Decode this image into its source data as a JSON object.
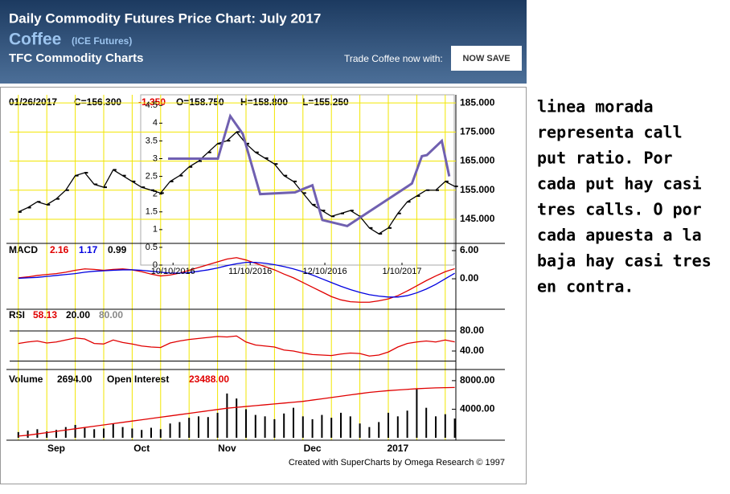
{
  "header": {
    "title": "Daily Commodity Futures Price Chart: July 2017",
    "commodity": "Coffee",
    "exchange": "(ICE Futures)",
    "brand": "TFC Commodity Charts",
    "trade_text": "Trade Coffee now with:",
    "button": "NOW SAVE"
  },
  "chart_data": [
    {
      "type": "line",
      "date": "01/26/2017",
      "close": "C=156.300",
      "change": "-1.350",
      "open": "O=158.750",
      "high": "H=158.800",
      "low": "L=155.250",
      "color": "#000000",
      "categories": [
        null,
        null,
        null,
        null,
        "Sep",
        null,
        null,
        null,
        null,
        null,
        null,
        null,
        null,
        "Oct",
        null,
        null,
        null,
        null,
        null,
        null,
        null,
        null,
        "Nov",
        null,
        null,
        null,
        null,
        null,
        null,
        null,
        null,
        "Dec",
        null,
        null,
        null,
        null,
        null,
        null,
        null,
        null,
        "2017",
        null,
        null,
        null,
        null,
        null,
        null
      ],
      "values": [
        147.5,
        149,
        151,
        150,
        152,
        155,
        160,
        161,
        157,
        156,
        162,
        160,
        158,
        156,
        155,
        154,
        158,
        160,
        163,
        165,
        168,
        171,
        172,
        175,
        171,
        168,
        166,
        164,
        160,
        158,
        154,
        150,
        148,
        146,
        147,
        148,
        146,
        142,
        140,
        142,
        147,
        151,
        153,
        155,
        155,
        158,
        156.3
      ],
      "ylim": [
        136.7,
        187.8
      ],
      "yticks": [
        {
          "value": 185,
          "label": "185.000"
        },
        {
          "value": 175,
          "label": "175.000"
        },
        {
          "value": 165,
          "label": "165.000"
        },
        {
          "value": 155,
          "label": "155.000"
        },
        {
          "value": 145,
          "label": "145.000"
        }
      ],
      "grid": true
    },
    {
      "type": "line",
      "title": "MACD",
      "readings": [
        "2.16",
        "1.17",
        "0.99"
      ],
      "reading_colors": [
        "#e00000",
        "#0000e0",
        "#000000"
      ],
      "series": [
        {
          "color": "#e00000",
          "values": [
            0.2,
            0.4,
            0.7,
            0.9,
            1.1,
            1.4,
            1.8,
            2.1,
            2.0,
            1.8,
            2.0,
            2.1,
            1.9,
            1.5,
            1.0,
            0.6,
            0.8,
            1.2,
            1.8,
            2.4,
            3.0,
            3.6,
            4.2,
            4.5,
            4.0,
            3.3,
            2.6,
            1.9,
            1.0,
            0.2,
            -0.8,
            -1.8,
            -2.8,
            -3.8,
            -4.5,
            -4.9,
            -5.0,
            -5.0,
            -4.7,
            -4.3,
            -3.6,
            -2.6,
            -1.5,
            -0.4,
            0.6,
            1.5,
            2.16
          ]
        },
        {
          "color": "#0000e0",
          "values": [
            0.1,
            0.2,
            0.3,
            0.5,
            0.7,
            0.9,
            1.1,
            1.4,
            1.6,
            1.7,
            1.8,
            1.9,
            1.9,
            1.8,
            1.6,
            1.4,
            1.2,
            1.2,
            1.3,
            1.6,
            1.9,
            2.3,
            2.8,
            3.2,
            3.5,
            3.5,
            3.3,
            3.0,
            2.6,
            2.1,
            1.5,
            0.8,
            0.0,
            -0.8,
            -1.6,
            -2.3,
            -2.9,
            -3.4,
            -3.7,
            -3.9,
            -3.9,
            -3.6,
            -3.0,
            -2.2,
            -1.2,
            0.0,
            1.17
          ]
        }
      ],
      "ylim": [
        -6.5,
        7.2
      ],
      "yticks": [
        {
          "value": 6,
          "label": "6.00"
        },
        {
          "value": 0,
          "label": "0.00"
        }
      ]
    },
    {
      "type": "line",
      "title": "RSI",
      "readings": [
        "58.13",
        "20.00",
        "80.00"
      ],
      "reading_colors": [
        "#e00000",
        "#000000",
        "#888888"
      ],
      "color": "#e00000",
      "values": [
        55,
        58,
        60,
        56,
        58,
        62,
        66,
        64,
        55,
        54,
        62,
        57,
        54,
        50,
        48,
        47,
        56,
        60,
        63,
        65,
        67,
        69,
        68,
        70,
        58,
        52,
        50,
        48,
        42,
        40,
        36,
        33,
        32,
        31,
        34,
        36,
        35,
        30,
        32,
        38,
        48,
        55,
        58,
        60,
        58,
        62,
        58.13
      ],
      "levels": [
        80,
        20
      ],
      "ylim": [
        3.2,
        120
      ],
      "yticks": [
        {
          "value": 80,
          "label": "80.00"
        },
        {
          "value": 40,
          "label": "40.00"
        }
      ]
    },
    {
      "type": "bar",
      "title": "Volume",
      "volume_reading": "2694.00",
      "oi_title": "Open Interest",
      "oi_reading": "23488.00",
      "series": [
        {
          "color": "#000000",
          "values": [
            800,
            1000,
            1200,
            900,
            1100,
            1500,
            1800,
            1400,
            1200,
            1300,
            2000,
            1500,
            1300,
            1100,
            1400,
            1200,
            2000,
            2200,
            2800,
            3000,
            2900,
            3500,
            6200,
            5500,
            4000,
            3200,
            3000,
            2600,
            3400,
            4200,
            3000,
            2600,
            3200,
            2800,
            3500,
            3000,
            2000,
            1500,
            2200,
            3500,
            3000,
            3800,
            6800,
            4200,
            3000,
            3300,
            2694
          ]
        },
        {
          "color": "#e00000",
          "axis": "y2",
          "values": [
            800,
            1200,
            1800,
            2400,
            3000,
            3600,
            4200,
            4800,
            5400,
            6000,
            6600,
            7200,
            7800,
            8400,
            9000,
            9600,
            10200,
            10800,
            11400,
            12000,
            12600,
            13200,
            13800,
            14200,
            14600,
            15000,
            15400,
            15800,
            16200,
            16600,
            17000,
            17600,
            18200,
            18800,
            19400,
            20000,
            20600,
            21200,
            21600,
            22000,
            22300,
            22600,
            22900,
            23100,
            23300,
            23400,
            23488
          ]
        }
      ],
      "ylim": [
        0,
        9000
      ],
      "yticks": [
        {
          "value": 8000,
          "label": "8000.00"
        },
        {
          "value": 4000,
          "label": "4000.00"
        }
      ],
      "y2lim": [
        0,
        30000
      ]
    },
    {
      "type": "line",
      "color": "#7060b0",
      "x": [
        "2016-10-08",
        "2016-10-28",
        "2016-11-02",
        "2016-11-04",
        "2016-11-07",
        "2016-11-14",
        "2016-11-28",
        "2016-12-05",
        "2016-12-09",
        "2016-12-19",
        "2017-01-14",
        "2017-01-18",
        "2017-01-20",
        "2017-01-26",
        "2017-01-29"
      ],
      "values": [
        3.0,
        3.0,
        4.2,
        4.0,
        3.7,
        2.0,
        2.05,
        2.25,
        1.27,
        1.1,
        2.3,
        3.07,
        3.1,
        3.5,
        2.5
      ],
      "xlim": [
        "2016-09-27",
        "2017-01-31"
      ],
      "xticks": [
        {
          "value": "2016-10-10",
          "label": "10/10/2016"
        },
        {
          "value": "2016-11-10",
          "label": "11/10/2016"
        },
        {
          "value": "2016-12-10",
          "label": "12/10/2016"
        },
        {
          "value": "2017-01-10",
          "label": "1/10/2017"
        }
      ],
      "ylim": [
        0,
        4.8
      ],
      "yticks": [
        0,
        0.5,
        1,
        1.5,
        2,
        2.5,
        3,
        3.5,
        4,
        4.5
      ]
    }
  ],
  "credit": "Created with SuperCharts by Omega Research © 1997",
  "note": [
    "linea morada",
    "representa call",
    "put ratio.  Por",
    "cada put hay casi",
    "tres calls.  O por",
    "cada apuesta a la",
    "baja hay casi tres",
    "en contra."
  ]
}
